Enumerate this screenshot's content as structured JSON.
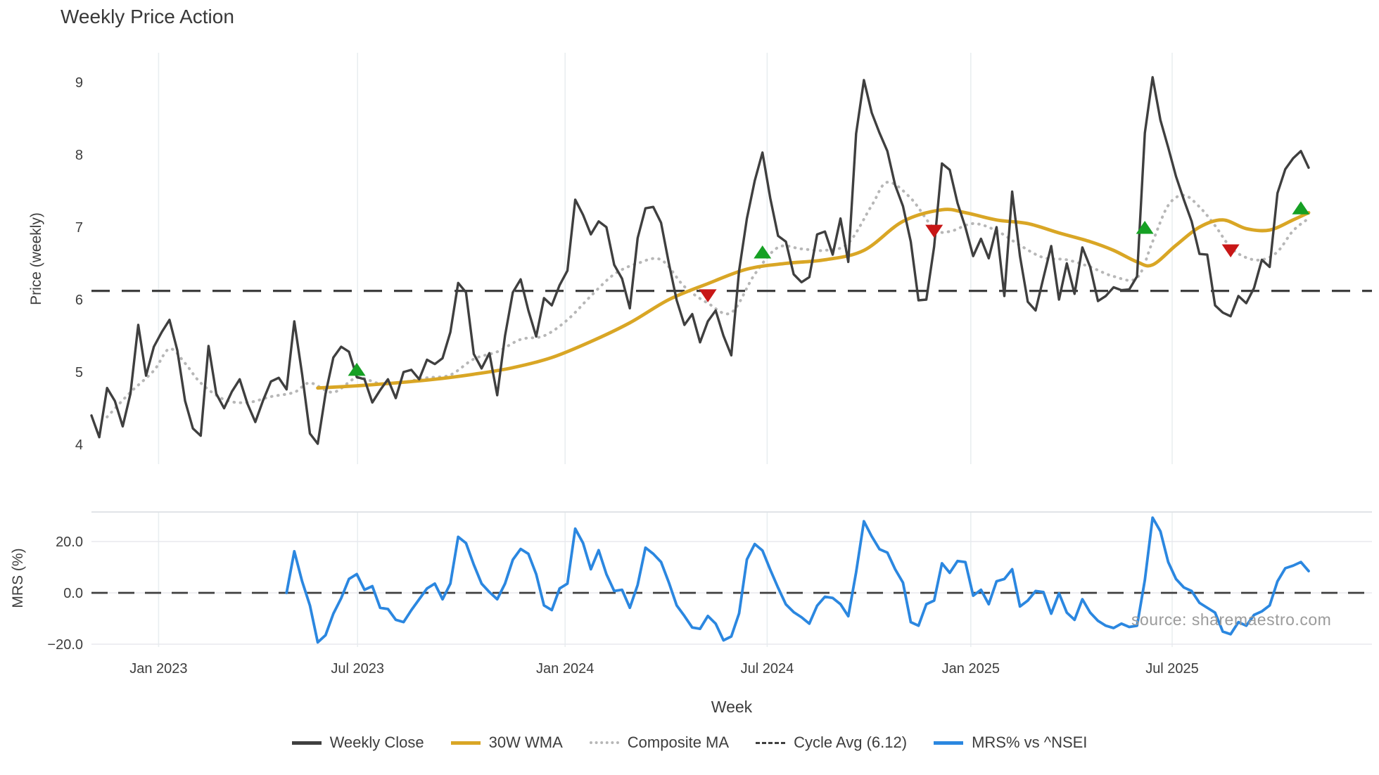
{
  "title": "Weekly Price Action",
  "source_text": "source: sharemaestro.com",
  "colors": {
    "close": "#3f3f3f",
    "wma": "#d9a625",
    "composite": "#b7b7b7",
    "cycle": "#3f3f3f",
    "mrs": "#2b87e0",
    "buy": "#16a024",
    "sell": "#c81717",
    "grid": "#e9eef0",
    "mrs_grid": "#e8e8ee",
    "panel_border": "#dde1e4",
    "watermark": "#9b9b9b"
  },
  "legend": {
    "items": [
      {
        "label": "Weekly Close",
        "style": "solid",
        "color_key": "close"
      },
      {
        "label": "30W WMA",
        "style": "solid",
        "color_key": "wma"
      },
      {
        "label": "Composite MA",
        "style": "dotted",
        "color_key": "composite"
      },
      {
        "label": "Cycle Avg (6.12)",
        "style": "dashed",
        "color_key": "cycle"
      },
      {
        "label": "MRS% vs ^NSEI",
        "style": "solid",
        "color_key": "mrs"
      }
    ]
  },
  "chart_data": [
    {
      "type": "line",
      "title": "Weekly Price Action",
      "xlabel": "",
      "ylabel": "Price (weekly)",
      "ylim": [
        3.7,
        9.4
      ],
      "xlim_weeks": [
        0,
        164
      ],
      "grid": "vertical-only",
      "y_ticks": [
        {
          "label": "9",
          "value": 9
        },
        {
          "label": "8",
          "value": 8
        },
        {
          "label": "7",
          "value": 7
        },
        {
          "label": "6",
          "value": 6
        },
        {
          "label": "5",
          "value": 5
        },
        {
          "label": "4",
          "value": 4
        }
      ],
      "x_ticks": [
        {
          "label": "Jan 2023",
          "week": 8.6
        },
        {
          "label": "Jul 2023",
          "week": 34.1
        },
        {
          "label": "Jan 2024",
          "week": 60.7
        },
        {
          "label": "Jul 2024",
          "week": 86.6
        },
        {
          "label": "Jan 2025",
          "week": 112.7
        },
        {
          "label": "Jul 2025",
          "week": 138.5
        }
      ],
      "cycle_avg": 6.12,
      "series": [
        {
          "name": "Weekly Close",
          "style": "solid",
          "color_key": "close",
          "start_week": 0,
          "values": [
            4.4,
            4.1,
            4.78,
            4.6,
            4.25,
            4.7,
            5.65,
            4.95,
            5.35,
            5.55,
            5.72,
            5.3,
            4.6,
            4.22,
            4.12,
            5.36,
            4.7,
            4.5,
            4.73,
            4.9,
            4.56,
            4.31,
            4.61,
            4.87,
            4.92,
            4.76,
            5.7,
            4.97,
            4.15,
            4.01,
            4.7,
            5.2,
            5.35,
            5.28,
            4.93,
            4.9,
            4.58,
            4.75,
            4.9,
            4.64,
            5.0,
            5.03,
            4.9,
            5.17,
            5.11,
            5.19,
            5.55,
            6.23,
            6.1,
            5.25,
            5.05,
            5.26,
            4.68,
            5.5,
            6.1,
            6.28,
            5.85,
            5.49,
            6.02,
            5.92,
            6.2,
            6.4,
            7.38,
            7.17,
            6.9,
            7.08,
            7.0,
            6.48,
            6.29,
            5.88,
            6.85,
            7.26,
            7.28,
            7.06,
            6.5,
            5.99,
            5.65,
            5.8,
            5.41,
            5.7,
            5.85,
            5.5,
            5.23,
            6.4,
            7.12,
            7.64,
            8.03,
            7.4,
            6.88,
            6.8,
            6.35,
            6.24,
            6.31,
            6.9,
            6.94,
            6.62,
            7.12,
            6.52,
            8.29,
            9.03,
            8.58,
            8.3,
            8.05,
            7.58,
            7.29,
            6.8,
            5.99,
            6.0,
            6.73,
            7.88,
            7.79,
            7.33,
            7.0,
            6.6,
            6.84,
            6.57,
            7.0,
            6.05,
            7.49,
            6.6,
            5.97,
            5.85,
            6.3,
            6.74,
            6.0,
            6.5,
            6.08,
            6.72,
            6.45,
            5.98,
            6.05,
            6.17,
            6.13,
            6.14,
            6.32,
            8.3,
            9.07,
            8.48,
            8.1,
            7.7,
            7.38,
            7.08,
            6.63,
            6.62,
            5.92,
            5.82,
            5.77,
            6.05,
            5.95,
            6.16,
            6.55,
            6.45,
            7.47,
            7.8,
            7.95,
            8.05,
            7.82
          ]
        },
        {
          "name": "30W WMA",
          "style": "solid",
          "color_key": "wma",
          "points": [
            [
              29,
              4.78
            ],
            [
              34,
              4.81
            ],
            [
              39,
              4.85
            ],
            [
              44,
              4.9
            ],
            [
              49,
              4.97
            ],
            [
              54,
              5.06
            ],
            [
              59,
              5.2
            ],
            [
              64,
              5.42
            ],
            [
              69,
              5.68
            ],
            [
              74,
              6.0
            ],
            [
              79,
              6.22
            ],
            [
              84,
              6.42
            ],
            [
              89,
              6.5
            ],
            [
              94,
              6.55
            ],
            [
              99,
              6.68
            ],
            [
              104,
              7.08
            ],
            [
              109,
              7.24
            ],
            [
              112,
              7.2
            ],
            [
              116,
              7.1
            ],
            [
              120,
              7.05
            ],
            [
              124,
              6.92
            ],
            [
              128,
              6.8
            ],
            [
              131,
              6.68
            ],
            [
              134,
              6.52
            ],
            [
              136,
              6.48
            ],
            [
              139,
              6.75
            ],
            [
              142,
              7.0
            ],
            [
              145,
              7.1
            ],
            [
              148,
              6.98
            ],
            [
              151,
              6.96
            ],
            [
              154,
              7.1
            ],
            [
              156,
              7.2
            ]
          ]
        },
        {
          "name": "Composite MA",
          "style": "dotted",
          "color_key": "composite",
          "points": [
            [
              2,
              4.38
            ],
            [
              5,
              4.72
            ],
            [
              8,
              5.02
            ],
            [
              10,
              5.32
            ],
            [
              12,
              5.12
            ],
            [
              14,
              4.85
            ],
            [
              17,
              4.62
            ],
            [
              20,
              4.58
            ],
            [
              23,
              4.66
            ],
            [
              26,
              4.72
            ],
            [
              28,
              4.85
            ],
            [
              31,
              4.72
            ],
            [
              34,
              4.92
            ],
            [
              37,
              4.84
            ],
            [
              40,
              4.86
            ],
            [
              43,
              4.92
            ],
            [
              46,
              4.96
            ],
            [
              49,
              5.18
            ],
            [
              52,
              5.28
            ],
            [
              55,
              5.45
            ],
            [
              58,
              5.5
            ],
            [
              61,
              5.72
            ],
            [
              64,
              6.05
            ],
            [
              67,
              6.35
            ],
            [
              70,
              6.5
            ],
            [
              73,
              6.55
            ],
            [
              76,
              6.18
            ],
            [
              79,
              5.95
            ],
            [
              82,
              5.82
            ],
            [
              85,
              6.35
            ],
            [
              88,
              6.72
            ],
            [
              91,
              6.7
            ],
            [
              94,
              6.68
            ],
            [
              97,
              6.78
            ],
            [
              100,
              7.3
            ],
            [
              102,
              7.62
            ],
            [
              105,
              7.4
            ],
            [
              108,
              6.98
            ],
            [
              110,
              6.94
            ],
            [
              113,
              7.05
            ],
            [
              116,
              6.95
            ],
            [
              119,
              6.75
            ],
            [
              122,
              6.58
            ],
            [
              125,
              6.55
            ],
            [
              128,
              6.45
            ],
            [
              131,
              6.32
            ],
            [
              134,
              6.3
            ],
            [
              136,
              6.8
            ],
            [
              138,
              7.3
            ],
            [
              140,
              7.44
            ],
            [
              142,
              7.28
            ],
            [
              144,
              7.02
            ],
            [
              146,
              6.72
            ],
            [
              148,
              6.58
            ],
            [
              150,
              6.55
            ],
            [
              152,
              6.66
            ],
            [
              154,
              6.95
            ],
            [
              156,
              7.12
            ]
          ]
        },
        {
          "name": "Cycle Avg (6.12)",
          "style": "dashed",
          "color_key": "cycle",
          "value": 6.12
        }
      ],
      "markers": {
        "buy": {
          "shape": "triangle-up",
          "color_key": "buy",
          "points": [
            [
              34,
              5.03
            ],
            [
              86,
              6.65
            ],
            [
              135,
              6.99
            ],
            [
              155,
              7.26
            ]
          ]
        },
        "sell": {
          "shape": "triangle-down",
          "color_key": "sell",
          "points": [
            [
              79,
              6.06
            ],
            [
              108,
              6.95
            ],
            [
              146,
              6.68
            ]
          ]
        }
      }
    },
    {
      "type": "line",
      "title": "",
      "xlabel": "Week",
      "ylabel": "MRS (%)",
      "ylim": [
        -21,
        31
      ],
      "zero_line": 0.0,
      "y_ticks": [
        {
          "label": "20.0",
          "value": 20
        },
        {
          "label": "0.0",
          "value": 0
        },
        {
          "label": "−20.0",
          "value": -20
        }
      ],
      "series": [
        {
          "name": "MRS% vs ^NSEI",
          "style": "solid",
          "color_key": "mrs",
          "start_week": 25,
          "values": [
            0.0,
            16.2,
            4.5,
            -4.9,
            -19.3,
            -16.5,
            -8.1,
            -2.1,
            5.4,
            7.3,
            1.2,
            2.6,
            -5.8,
            -6.3,
            -10.5,
            -11.4,
            -6.7,
            -2.5,
            1.7,
            3.6,
            -2.5,
            3.6,
            21.8,
            19.4,
            11.0,
            3.6,
            0.3,
            -2.5,
            3.6,
            12.9,
            17.1,
            15.2,
            7.3,
            -4.9,
            -6.7,
            1.7,
            3.6,
            25.0,
            19.4,
            9.2,
            16.6,
            7.3,
            0.7,
            1.2,
            -5.8,
            3.1,
            17.6,
            15.2,
            12.0,
            4.0,
            -4.9,
            -9.0,
            -13.5,
            -14.0,
            -9.0,
            -12.0,
            -18.5,
            -17.0,
            -8.0,
            13.0,
            19.0,
            16.5,
            9.0,
            2.0,
            -4.5,
            -7.5,
            -9.5,
            -12.0,
            -5.0,
            -1.5,
            -2.0,
            -4.4,
            -9.1,
            8.0,
            27.9,
            22.0,
            17.0,
            15.7,
            9.2,
            4.0,
            -11.4,
            -12.8,
            -4.4,
            -3.0,
            11.5,
            7.8,
            12.4,
            12.0,
            -1.1,
            1.2,
            -4.4,
            4.5,
            5.4,
            9.2,
            -5.3,
            -3.0,
            0.7,
            0.3,
            -8.1,
            -0.2,
            -7.7,
            -10.5,
            -2.5,
            -7.7,
            -10.9,
            -12.8,
            -13.7,
            -12.0,
            -13.3,
            -12.8,
            5.0,
            29.3,
            24.0,
            12.0,
            5.4,
            2.1,
            0.7,
            -3.9,
            -5.8,
            -7.7,
            -15.1,
            -16.1,
            -11.4,
            -12.8,
            -8.6,
            -7.2,
            -4.9,
            4.5,
            9.6,
            10.6,
            12.0,
            8.5
          ]
        }
      ]
    }
  ]
}
